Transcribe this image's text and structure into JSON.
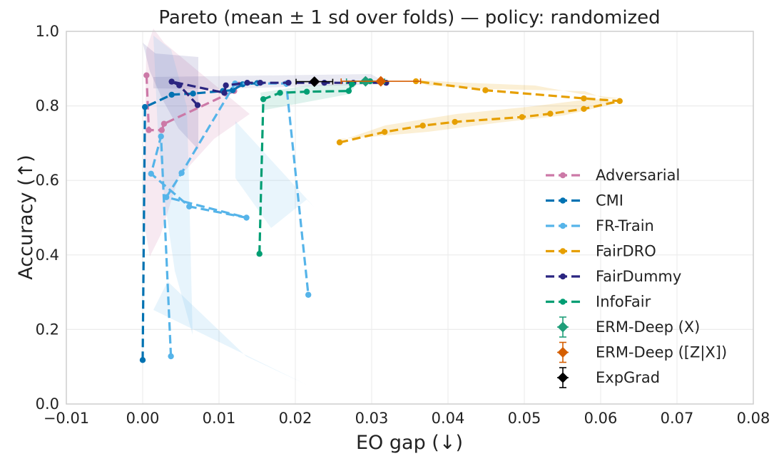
{
  "chart_data": {
    "type": "line",
    "title": "Pareto (mean ± 1 sd over folds) — policy: randomized",
    "xlabel": "EO gap (↓)",
    "ylabel": "Accuracy (↑)",
    "xlim": [
      -0.01,
      0.08
    ],
    "ylim": [
      0.0,
      1.0
    ],
    "xticks": [
      "−0.01",
      "0.00",
      "0.01",
      "0.02",
      "0.03",
      "0.04",
      "0.05",
      "0.06",
      "0.07",
      "0.08"
    ],
    "yticks": [
      "0.0",
      "0.2",
      "0.4",
      "0.6",
      "0.8",
      "1.0"
    ],
    "grid": true,
    "legend_position": "center-right",
    "series": [
      {
        "name": "Adversarial",
        "color": "#cc79a7",
        "dash": "dashed",
        "points": [
          [
            0.0005,
            0.882
          ],
          [
            0.0008,
            0.735
          ],
          [
            0.0025,
            0.735
          ],
          [
            0.0028,
            0.752
          ],
          [
            0.012,
            0.84
          ],
          [
            0.0126,
            0.857
          ]
        ]
      },
      {
        "name": "CMI",
        "color": "#0072b2",
        "dash": "dashed",
        "points": [
          [
            0.0,
            0.118
          ],
          [
            0.0003,
            0.797
          ],
          [
            0.0038,
            0.83
          ],
          [
            0.0066,
            0.833
          ],
          [
            0.0105,
            0.84
          ],
          [
            0.0118,
            0.842
          ],
          [
            0.0131,
            0.858
          ],
          [
            0.015,
            0.861
          ]
        ]
      },
      {
        "name": "FR-Train",
        "color": "#56b4e9",
        "dash": "dashed",
        "points": [
          [
            0.0037,
            0.128
          ],
          [
            0.0024,
            0.718
          ],
          [
            0.0011,
            0.618
          ],
          [
            0.0061,
            0.53
          ],
          [
            0.0136,
            0.5
          ],
          [
            0.0031,
            0.555
          ],
          [
            0.0051,
            0.62
          ],
          [
            0.0121,
            0.86
          ],
          [
            0.0188,
            0.86
          ],
          [
            0.0217,
            0.293
          ]
        ]
      },
      {
        "name": "FairDRO",
        "color": "#e69f00",
        "dash": "dashed",
        "points": [
          [
            0.0258,
            0.702
          ],
          [
            0.0317,
            0.73
          ],
          [
            0.0367,
            0.747
          ],
          [
            0.0409,
            0.757
          ],
          [
            0.0497,
            0.77
          ],
          [
            0.0534,
            0.779
          ],
          [
            0.0578,
            0.792
          ],
          [
            0.0625,
            0.813
          ],
          [
            0.0578,
            0.82
          ],
          [
            0.0449,
            0.842
          ],
          [
            0.0358,
            0.866
          ]
        ]
      },
      {
        "name": "FairDummy",
        "color": "#2a2580",
        "dash": "dashed",
        "points": [
          [
            0.0072,
            0.802
          ],
          [
            0.0048,
            0.855
          ],
          [
            0.0038,
            0.865
          ],
          [
            0.0107,
            0.835
          ],
          [
            0.0109,
            0.855
          ],
          [
            0.0137,
            0.862
          ],
          [
            0.0154,
            0.862
          ],
          [
            0.0191,
            0.862
          ],
          [
            0.0238,
            0.862
          ],
          [
            0.0276,
            0.862
          ],
          [
            0.0319,
            0.862
          ]
        ]
      },
      {
        "name": "InfoFair",
        "color": "#009e73",
        "dash": "dashed",
        "points": [
          [
            0.0153,
            0.403
          ],
          [
            0.0158,
            0.818
          ],
          [
            0.018,
            0.835
          ],
          [
            0.0215,
            0.838
          ],
          [
            0.027,
            0.84
          ],
          [
            0.0274,
            0.858
          ],
          [
            0.0298,
            0.866
          ]
        ]
      }
    ],
    "error_points": [
      {
        "name": "ERM-Deep (X)",
        "color": "#1f9e79",
        "x": 0.0292,
        "y": 0.866,
        "x_err": 0.0025,
        "y_err": 0.003,
        "marker": "diamond"
      },
      {
        "name": "ERM-Deep ([Z|X])",
        "color": "#d55e00",
        "x": 0.0312,
        "y": 0.866,
        "x_err": 0.0052,
        "y_err": 0.003,
        "marker": "diamond"
      },
      {
        "name": "ExpGrad",
        "color": "#000000",
        "x": 0.0225,
        "y": 0.865,
        "x_err": 0.0024,
        "y_err": 0.003,
        "marker": "diamond"
      }
    ]
  }
}
